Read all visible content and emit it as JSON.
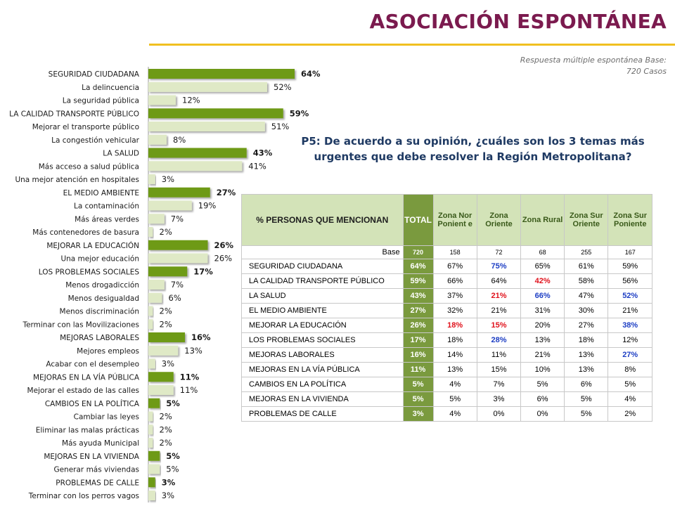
{
  "title": "ASOCIACIÓN ESPONTÁNEA",
  "base_note": "Respuesta múltiple espontánea Base: 720 Casos",
  "question": "P5: De acuerdo a su opinión, ¿cuáles son los 3 temas más urgentes que debe resolver la Región Metropolitana?",
  "colors": {
    "title": "#7b1a4e",
    "rule": "#f0c020",
    "category_bar": "#6e9a12",
    "sub_bar": "#dfe9c6",
    "table_header": "#d3e3b8",
    "total_col": "#7a9a3e",
    "highlight_red": "#e0121c",
    "highlight_blue": "#1d3ec4"
  },
  "chart_data": [
    {
      "type": "bar",
      "orientation": "horizontal",
      "categories": [
        "SEGURIDAD CIUDADANA",
        "La delincuencia",
        "La seguridad pública",
        "LA CALIDAD TRANSPORTE PÚBLICO",
        "Mejorar el transporte público",
        "La congestión vehicular",
        "LA SALUD",
        "Más acceso a salud pública",
        "Una mejor atención en hospitales",
        "EL MEDIO AMBIENTE",
        "La contaminación",
        "Más áreas verdes",
        "Más contenedores de basura",
        "MEJORAR LA EDUCACIÓN",
        "Una mejor educación",
        "LOS PROBLEMAS SOCIALES",
        "Menos drogadicción",
        "Menos desigualdad",
        "Menos discriminación",
        "Terminar con las Movilizaciones",
        "MEJORAS LABORALES",
        "Mejores empleos",
        "Acabar con el desempleo",
        "MEJORAS EN LA VÍA PÚBLICA",
        "Mejorar el estado de las calles",
        "CAMBIOS EN LA POLÍTICA",
        "Cambiar las leyes",
        "Eliminar las malas prácticas",
        "Más ayuda Municipal",
        "MEJORAS EN LA VIVIENDA",
        "Generar más viviendas",
        "PROBLEMAS DE CALLE",
        "Terminar con los perros vagos"
      ],
      "values": [
        64,
        52,
        12,
        59,
        51,
        8,
        43,
        41,
        3,
        27,
        19,
        7,
        2,
        26,
        26,
        17,
        7,
        6,
        2,
        2,
        16,
        13,
        3,
        11,
        11,
        5,
        2,
        2,
        2,
        5,
        5,
        3,
        3
      ],
      "value_labels": [
        "64%",
        "52%",
        "12%",
        "59%",
        "51%",
        "8%",
        "43%",
        "41%",
        "3%",
        "27%",
        "19%",
        "7%",
        "2%",
        "26%",
        "26%",
        "17%",
        "7%",
        "6%",
        "2%",
        "2%",
        "16%",
        "13%",
        "3%",
        "11%",
        "11%",
        "5%",
        "2%",
        "2%",
        "2%",
        "5%",
        "5%",
        "3%",
        "3%"
      ],
      "is_category": [
        true,
        false,
        false,
        true,
        false,
        false,
        true,
        false,
        false,
        true,
        false,
        false,
        false,
        true,
        false,
        true,
        false,
        false,
        false,
        false,
        true,
        false,
        false,
        true,
        false,
        true,
        false,
        false,
        false,
        true,
        false,
        true,
        false
      ],
      "xlim": [
        0,
        100
      ],
      "grid": false,
      "legend": "none"
    },
    {
      "type": "table",
      "columns": [
        "% PERSONAS QUE MENCIONAN",
        "TOTAL",
        "Zona Nor Ponient e",
        "Zona Oriente",
        "Zona Rural",
        "Zona Sur Oriente",
        "Zona Sur Poniente"
      ],
      "base": {
        "label": "Base",
        "values": [
          "720",
          "158",
          "72",
          "68",
          "255",
          "167"
        ]
      },
      "rows": [
        {
          "label": "SEGURIDAD CIUDADANA",
          "values": [
            "64%",
            "67%",
            "75%",
            "65%",
            "61%",
            "59%"
          ],
          "marks": [
            "",
            "",
            "blue",
            "",
            "",
            ""
          ]
        },
        {
          "label": "LA CALIDAD TRANSPORTE PÚBLICO",
          "values": [
            "59%",
            "66%",
            "64%",
            "42%",
            "58%",
            "56%"
          ],
          "marks": [
            "",
            "",
            "",
            "red",
            "",
            ""
          ]
        },
        {
          "label": "LA SALUD",
          "values": [
            "43%",
            "37%",
            "21%",
            "66%",
            "47%",
            "52%"
          ],
          "marks": [
            "",
            "",
            "red",
            "blue",
            "",
            "blue"
          ]
        },
        {
          "label": "EL MEDIO AMBIENTE",
          "values": [
            "27%",
            "32%",
            "21%",
            "31%",
            "30%",
            "21%"
          ],
          "marks": [
            "",
            "",
            "",
            "",
            "",
            ""
          ]
        },
        {
          "label": "MEJORAR LA EDUCACIÓN",
          "values": [
            "26%",
            "18%",
            "15%",
            "20%",
            "27%",
            "38%"
          ],
          "marks": [
            "",
            "red",
            "red",
            "",
            "",
            "blue"
          ]
        },
        {
          "label": "LOS PROBLEMAS SOCIALES",
          "values": [
            "17%",
            "18%",
            "28%",
            "13%",
            "18%",
            "12%"
          ],
          "marks": [
            "",
            "",
            "blue",
            "",
            "",
            ""
          ]
        },
        {
          "label": "MEJORAS LABORALES",
          "values": [
            "16%",
            "14%",
            "11%",
            "21%",
            "13%",
            "27%"
          ],
          "marks": [
            "",
            "",
            "",
            "",
            "",
            "blue"
          ]
        },
        {
          "label": "MEJORAS EN LA VÍA PÚBLICA",
          "values": [
            "11%",
            "13%",
            "15%",
            "10%",
            "13%",
            "8%"
          ],
          "marks": [
            "",
            "",
            "",
            "",
            "",
            ""
          ]
        },
        {
          "label": "CAMBIOS EN LA POLÍTICA",
          "values": [
            "5%",
            "4%",
            "7%",
            "5%",
            "6%",
            "5%"
          ],
          "marks": [
            "",
            "",
            "",
            "",
            "",
            ""
          ]
        },
        {
          "label": "MEJORAS EN LA VIVIENDA",
          "values": [
            "5%",
            "5%",
            "3%",
            "6%",
            "5%",
            "4%"
          ],
          "marks": [
            "",
            "",
            "",
            "",
            "",
            ""
          ]
        },
        {
          "label": "PROBLEMAS DE CALLE",
          "values": [
            "3%",
            "4%",
            "0%",
            "0%",
            "5%",
            "2%"
          ],
          "marks": [
            "",
            "",
            "",
            "",
            "",
            ""
          ]
        }
      ]
    }
  ]
}
